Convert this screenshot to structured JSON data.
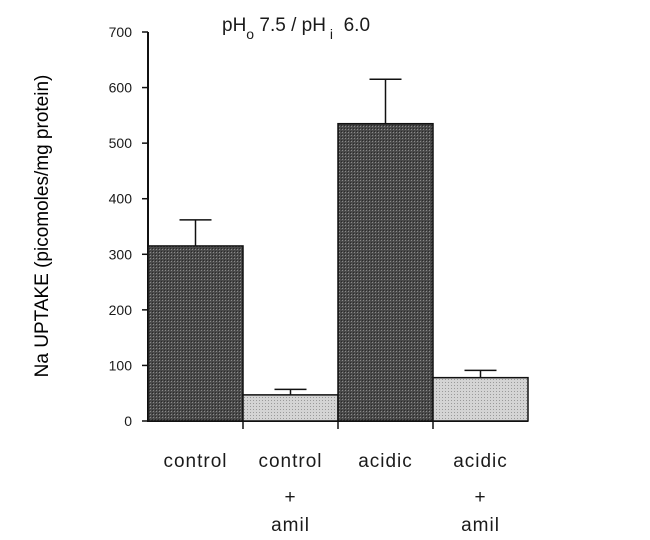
{
  "chart_data": {
    "type": "bar",
    "title_parts": {
      "p1": "pH",
      "o": "o",
      "p2": " 7.5 / pH",
      "i": "i",
      "p3": "  6.0"
    },
    "ylabel": "Na UPTAKE (picomoles/mg protein)",
    "xlabel": "",
    "ylim": [
      0,
      700
    ],
    "yticks": [
      "0",
      "100",
      "200",
      "300",
      "400",
      "500",
      "600",
      "700"
    ],
    "categories": [
      {
        "line1": "control",
        "line2": "",
        "line3": ""
      },
      {
        "line1": "control",
        "line2": "+",
        "line3": "amil"
      },
      {
        "line1": "acidic",
        "line2": "",
        "line3": ""
      },
      {
        "line1": "acidic",
        "line2": "+",
        "line3": "amil"
      }
    ],
    "values": [
      315,
      47,
      535,
      78
    ],
    "errors": [
      47,
      10,
      80,
      13
    ],
    "bar_styles": [
      "dark",
      "light",
      "dark",
      "light"
    ],
    "colors": {
      "dark_fill": "#555555",
      "light_fill": "#cfcfcf",
      "stroke": "#111111"
    },
    "grid": false,
    "legend": "none"
  }
}
